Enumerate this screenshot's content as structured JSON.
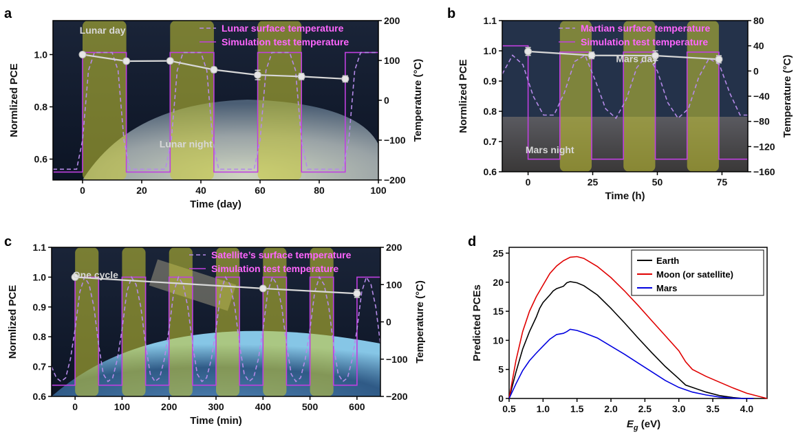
{
  "colors": {
    "sim": "#c040e0",
    "surface": "#b58ae8",
    "pce": "#d8d8d8",
    "day_band": "#c8c832",
    "earth": "#000000",
    "moon": "#e00000",
    "mars": "#0000e0"
  },
  "chart_data": [
    {
      "panel": "a",
      "type": "line",
      "xlabel": "Time (day)",
      "ylabel": "Normlized PCE",
      "y2label": "Temperature (°C)",
      "xlim": [
        -10,
        100
      ],
      "ylim": [
        0.52,
        1.13
      ],
      "y2lim": [
        -200,
        200
      ],
      "xticks": [
        0,
        20,
        40,
        60,
        80,
        100
      ],
      "yticks": [
        0.6,
        0.8,
        1.0
      ],
      "y2ticks": [
        -200,
        -100,
        0,
        100,
        200
      ],
      "legend": [
        "Lunar surface temperature",
        "Simulation test temperature"
      ],
      "annotations": [
        {
          "text": "Lunar day",
          "x": -1,
          "y": 1.08
        },
        {
          "text": "Lunar night",
          "x": 26,
          "y": 0.645
        }
      ],
      "pce": {
        "x": [
          0,
          14.8,
          29.6,
          44.4,
          59.2,
          74,
          88.8
        ],
        "y": [
          1.0,
          0.975,
          0.976,
          0.942,
          0.922,
          0.916,
          0.907
        ],
        "err": [
          0.004,
          0.008,
          0.007,
          0.01,
          0.018,
          0.012,
          0.012
        ]
      },
      "sim_temp": {
        "x": [
          -10,
          0,
          0,
          14.8,
          14.8,
          29.6,
          29.6,
          44.4,
          44.4,
          59.2,
          59.2,
          74,
          74,
          88.8,
          88.8,
          100
        ],
        "y": [
          -180,
          -180,
          120,
          120,
          -180,
          -180,
          120,
          120,
          -180,
          -180,
          120,
          120,
          -180,
          -180,
          120,
          120
        ]
      },
      "surface_temp": {
        "x": [
          -10,
          -8,
          -6,
          -4,
          -2,
          0,
          2,
          4,
          6,
          8,
          10,
          12,
          14,
          16,
          18,
          20,
          22,
          24,
          26,
          28,
          30,
          32,
          34,
          36,
          38,
          40,
          42,
          44,
          46,
          48,
          50,
          52,
          54,
          56,
          58,
          60,
          62,
          64,
          66,
          68,
          70,
          72,
          74,
          76,
          78,
          80,
          82,
          84,
          86,
          88,
          90,
          92,
          94,
          96,
          98,
          100
        ],
        "y": [
          -173,
          -173,
          -173,
          -173,
          -173,
          -100,
          75,
          120,
          120,
          120,
          120,
          75,
          -100,
          -173,
          -173,
          -173,
          -173,
          -173,
          -173,
          -173,
          -100,
          75,
          120,
          120,
          120,
          120,
          75,
          -100,
          -173,
          -173,
          -173,
          -173,
          -173,
          -173,
          -173,
          -100,
          75,
          120,
          120,
          120,
          120,
          75,
          -100,
          -173,
          -173,
          -173,
          -173,
          -173,
          -173,
          -173,
          -100,
          75,
          120,
          120,
          120,
          120
        ]
      },
      "day_bands": [
        [
          0,
          14.8
        ],
        [
          29.6,
          44.4
        ],
        [
          59.2,
          74
        ]
      ]
    },
    {
      "panel": "b",
      "type": "line",
      "xlabel": "Time (h)",
      "ylabel": "Normlized PCE",
      "y2label": "Temperature (°C)",
      "xlim": [
        -10,
        85
      ],
      "ylim": [
        0.6,
        1.1
      ],
      "y2lim": [
        -160,
        80
      ],
      "xticks": [
        0,
        25,
        50,
        75
      ],
      "yticks": [
        0.6,
        0.7,
        0.8,
        0.9,
        1.0,
        1.1
      ],
      "y2ticks": [
        -160,
        -120,
        -80,
        -40,
        0,
        40,
        80
      ],
      "legend": [
        "Martian surface temperature",
        "Simulation test temperature"
      ],
      "annotations": [
        {
          "text": "Mars day",
          "x": 34,
          "y": 0.963
        },
        {
          "text": "Mars night",
          "x": -1,
          "y": 0.661
        }
      ],
      "pce": {
        "x": [
          0,
          24.6,
          49.2,
          73.8
        ],
        "y": [
          0.998,
          0.985,
          0.984,
          0.972
        ],
        "err": [
          0.013,
          0.011,
          0.016,
          0.012
        ]
      },
      "sim_temp": {
        "x": [
          -10,
          0,
          0,
          12.3,
          12.3,
          24.6,
          24.6,
          36.9,
          36.9,
          49.2,
          49.2,
          61.5,
          61.5,
          73.8,
          73.8,
          85
        ],
        "y": [
          40,
          40,
          -140,
          -140,
          30,
          30,
          -140,
          -140,
          30,
          30,
          -140,
          -140,
          30,
          30,
          -140,
          -140
        ]
      },
      "surface_temp": {
        "x": [
          -10,
          -6,
          -2,
          2,
          6,
          10,
          14,
          18,
          22,
          26,
          30,
          34,
          38,
          42,
          46,
          50,
          54,
          58,
          62,
          66,
          70,
          74,
          78,
          82,
          85
        ],
        "y": [
          -5,
          25,
          10,
          -40,
          -70,
          -70,
          -35,
          15,
          25,
          -15,
          -60,
          -75,
          -45,
          5,
          25,
          0,
          -50,
          -75,
          -60,
          -10,
          20,
          10,
          -35,
          -70,
          -70
        ]
      },
      "day_bands": [
        [
          12.3,
          24.6
        ],
        [
          36.9,
          49.2
        ],
        [
          61.5,
          73.8
        ]
      ]
    },
    {
      "panel": "c",
      "type": "line",
      "xlabel": "Time (min)",
      "ylabel": "Normlized PCE",
      "y2label": "Temperature (°C)",
      "xlim": [
        -50,
        650
      ],
      "ylim": [
        0.6,
        1.1
      ],
      "y2lim": [
        -200,
        200
      ],
      "xticks": [
        0,
        100,
        200,
        300,
        400,
        500,
        600
      ],
      "yticks": [
        0.6,
        0.7,
        0.8,
        0.9,
        1.0,
        1.1
      ],
      "y2ticks": [
        -200,
        -100,
        0,
        100,
        200
      ],
      "legend": [
        "Satellite’s surface temperature",
        "Simulation test temperature"
      ],
      "annotations": [
        {
          "text": "One cycle",
          "x": -5,
          "y": 0.996
        }
      ],
      "pce": {
        "x": [
          0,
          400,
          600
        ],
        "y": [
          1.0,
          0.962,
          0.945
        ],
        "err": [
          0.004,
          0.006,
          0.013
        ]
      },
      "sim_temp": {
        "x": [
          -50,
          0,
          0,
          50,
          50,
          100,
          100,
          150,
          150,
          200,
          200,
          250,
          250,
          300,
          300,
          350,
          350,
          400,
          400,
          450,
          450,
          500,
          500,
          550,
          550,
          600,
          600,
          650
        ],
        "y": [
          -170,
          -170,
          120,
          120,
          -170,
          -170,
          120,
          120,
          -170,
          -170,
          120,
          120,
          -170,
          -170,
          120,
          120,
          -170,
          -170,
          120,
          120,
          -170,
          -170,
          120,
          120,
          -170,
          -170,
          120,
          120
        ]
      },
      "surface_temp": {
        "x": [
          -50,
          -40,
          -30,
          -20,
          -10,
          0,
          10,
          20,
          30,
          40,
          50,
          60,
          70,
          80,
          90,
          100,
          110,
          120,
          130,
          140,
          150,
          160,
          170,
          180,
          190,
          200,
          210,
          220,
          230,
          240,
          250,
          260,
          270,
          280,
          290,
          300,
          310,
          320,
          330,
          340,
          350,
          360,
          370,
          380,
          390,
          400,
          410,
          420,
          430,
          440,
          450,
          460,
          470,
          480,
          490,
          500,
          510,
          520,
          530,
          540,
          550,
          560,
          570,
          580,
          590,
          600,
          610,
          620,
          630,
          640,
          650
        ],
        "y": [
          -120,
          -150,
          -160,
          -150,
          -100,
          -20,
          80,
          120,
          100,
          40,
          -60,
          -140,
          -160,
          -150,
          -100,
          -20,
          80,
          120,
          100,
          40,
          -60,
          -140,
          -160,
          -150,
          -100,
          -20,
          80,
          120,
          100,
          40,
          -60,
          -140,
          -160,
          -150,
          -100,
          -20,
          80,
          120,
          100,
          40,
          -60,
          -140,
          -160,
          -150,
          -100,
          -20,
          80,
          120,
          100,
          40,
          -60,
          -140,
          -160,
          -150,
          -100,
          -20,
          80,
          120,
          100,
          40,
          -60,
          -140,
          -160,
          -150,
          -100,
          -20,
          80,
          120,
          100,
          40,
          -60
        ]
      },
      "day_bands": [
        [
          0,
          50
        ],
        [
          100,
          150
        ],
        [
          200,
          250
        ],
        [
          300,
          350
        ],
        [
          400,
          450
        ],
        [
          500,
          550
        ]
      ]
    },
    {
      "panel": "d",
      "type": "line",
      "xlabel": "E",
      "xlabel_sub": "g",
      "xlabel_unit": " (eV)",
      "ylabel": "Predicted PCEs",
      "xlim": [
        0.5,
        4.3
      ],
      "ylim": [
        0,
        26
      ],
      "xticks": [
        0.5,
        1.0,
        1.5,
        2.0,
        2.5,
        3.0,
        3.5,
        4.0
      ],
      "xtick_labels": [
        "0.5",
        "1.0",
        "1.5",
        "2.0",
        "2.5",
        "3.0",
        "3.5",
        "4.0"
      ],
      "yticks": [
        0,
        5,
        10,
        15,
        20,
        25
      ],
      "legend_position": "top-right",
      "series": [
        {
          "name": "Earth",
          "x": [
            0.5,
            0.6,
            0.7,
            0.8,
            0.9,
            0.95,
            1.0,
            1.1,
            1.15,
            1.2,
            1.3,
            1.35,
            1.4,
            1.5,
            1.6,
            1.8,
            2.0,
            2.2,
            2.4,
            2.6,
            2.8,
            3.0,
            3.1,
            3.2,
            3.4,
            3.6,
            3.8,
            3.95,
            4.1
          ],
          "y": [
            0,
            4.5,
            8.5,
            11.5,
            14,
            15.5,
            16.5,
            17.8,
            18.5,
            18.9,
            19.3,
            19.9,
            20.1,
            19.9,
            19.4,
            17.8,
            15.5,
            13,
            10.4,
            7.9,
            5.5,
            3.4,
            2.3,
            1.9,
            1.1,
            0.5,
            0.15,
            0,
            0
          ]
        },
        {
          "name": "Moon (or satellite)",
          "x": [
            0.5,
            0.6,
            0.7,
            0.8,
            0.9,
            1.0,
            1.1,
            1.2,
            1.3,
            1.4,
            1.5,
            1.6,
            1.8,
            2.0,
            2.2,
            2.4,
            2.6,
            2.8,
            3.0,
            3.1,
            3.2,
            3.4,
            3.6,
            3.8,
            4.0,
            4.2,
            4.3
          ],
          "y": [
            0,
            6.5,
            11.5,
            15,
            17.5,
            19.5,
            21.5,
            22.8,
            23.7,
            24.3,
            24.4,
            24.1,
            22.7,
            20.8,
            18.5,
            16,
            13.4,
            10.8,
            8.2,
            6.3,
            5,
            3.8,
            2.8,
            1.8,
            0.9,
            0.3,
            0
          ]
        },
        {
          "name": "Mars",
          "x": [
            0.5,
            0.6,
            0.7,
            0.8,
            0.9,
            1.0,
            1.1,
            1.2,
            1.3,
            1.35,
            1.4,
            1.5,
            1.6,
            1.8,
            2.0,
            2.2,
            2.4,
            2.6,
            2.8,
            3.0,
            3.2,
            3.4,
            3.6,
            3.8,
            3.95,
            4.1
          ],
          "y": [
            0,
            2.5,
            4.8,
            6.5,
            7.8,
            9,
            10.2,
            11,
            11.2,
            11.5,
            11.9,
            11.7,
            11.3,
            10.4,
            9,
            7.6,
            6.1,
            4.6,
            3.1,
            1.9,
            1.1,
            0.6,
            0.25,
            0.05,
            0,
            0
          ]
        }
      ]
    }
  ]
}
